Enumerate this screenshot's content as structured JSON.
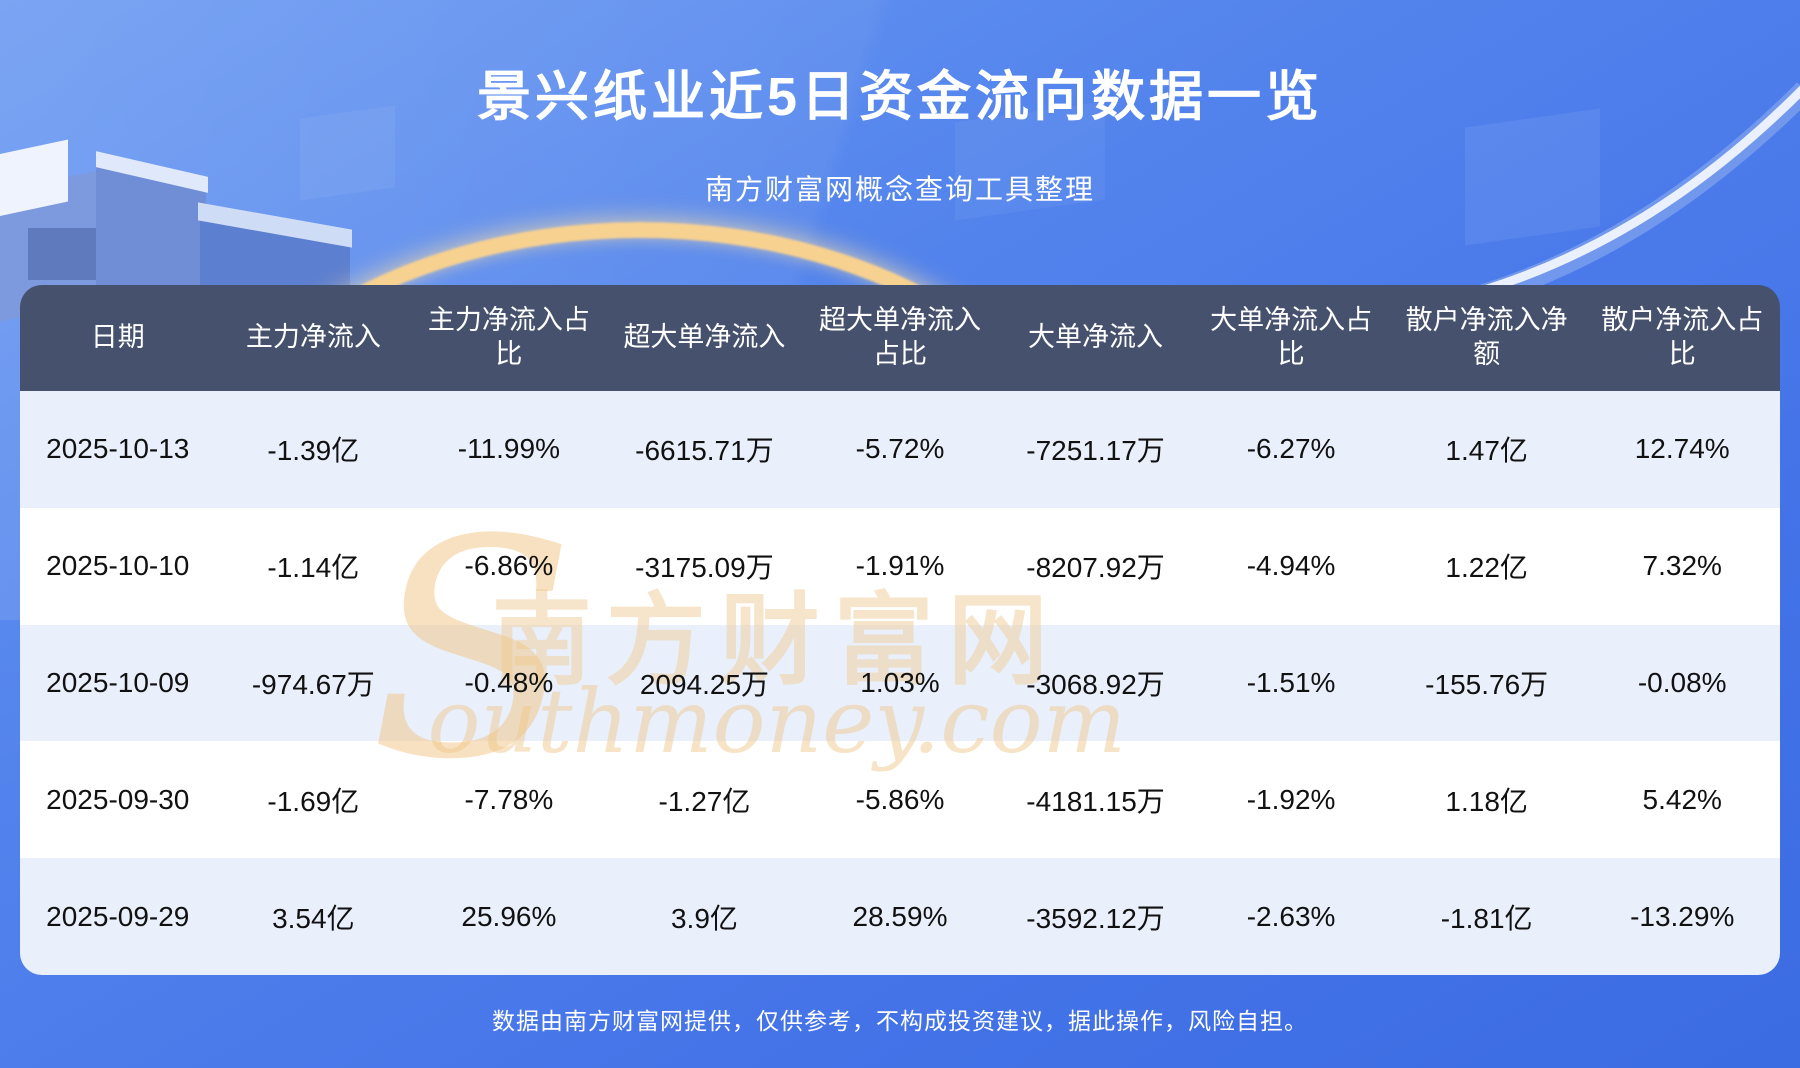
{
  "page": {
    "title": "景兴纸业近5日资金流向数据一览",
    "subtitle": "南方财富网概念查询工具整理",
    "footer": "数据由南方财富网提供，仅供参考，不构成投资建议，据此操作，风险自担。"
  },
  "watermark": {
    "s": "S",
    "cn": "南方财富网",
    "en": "outhmoney.com"
  },
  "colors": {
    "header_bg": "#46516d",
    "row_bg": "#ffffff",
    "row_alt_bg": "#e9effb",
    "page_blue": "#4473e8",
    "gold_arc": "#f7d190",
    "text_dark": "#111111",
    "text_light": "#ffffff"
  },
  "chart_data": {
    "type": "table",
    "title": "景兴纸业近5日资金流向数据一览",
    "columns": [
      "日期",
      "主力净流入",
      "主力净流入占比",
      "超大单净流入",
      "超大单净流入占比",
      "大单净流入",
      "大单净流入占比",
      "散户净流入净额",
      "散户净流入占比"
    ],
    "rows": [
      [
        "2025-10-13",
        "-1.39亿",
        "-11.99%",
        "-6615.71万",
        "-5.72%",
        "-7251.17万",
        "-6.27%",
        "1.47亿",
        "12.74%"
      ],
      [
        "2025-10-10",
        "-1.14亿",
        "-6.86%",
        "-3175.09万",
        "-1.91%",
        "-8207.92万",
        "-4.94%",
        "1.22亿",
        "7.32%"
      ],
      [
        "2025-10-09",
        "-974.67万",
        "-0.48%",
        "2094.25万",
        "1.03%",
        "-3068.92万",
        "-1.51%",
        "-155.76万",
        "-0.08%"
      ],
      [
        "2025-09-30",
        "-1.69亿",
        "-7.78%",
        "-1.27亿",
        "-5.86%",
        "-4181.15万",
        "-1.92%",
        "1.18亿",
        "5.42%"
      ],
      [
        "2025-09-29",
        "3.54亿",
        "25.96%",
        "3.9亿",
        "28.59%",
        "-3592.12万",
        "-2.63%",
        "-1.81亿",
        "-13.29%"
      ]
    ]
  }
}
